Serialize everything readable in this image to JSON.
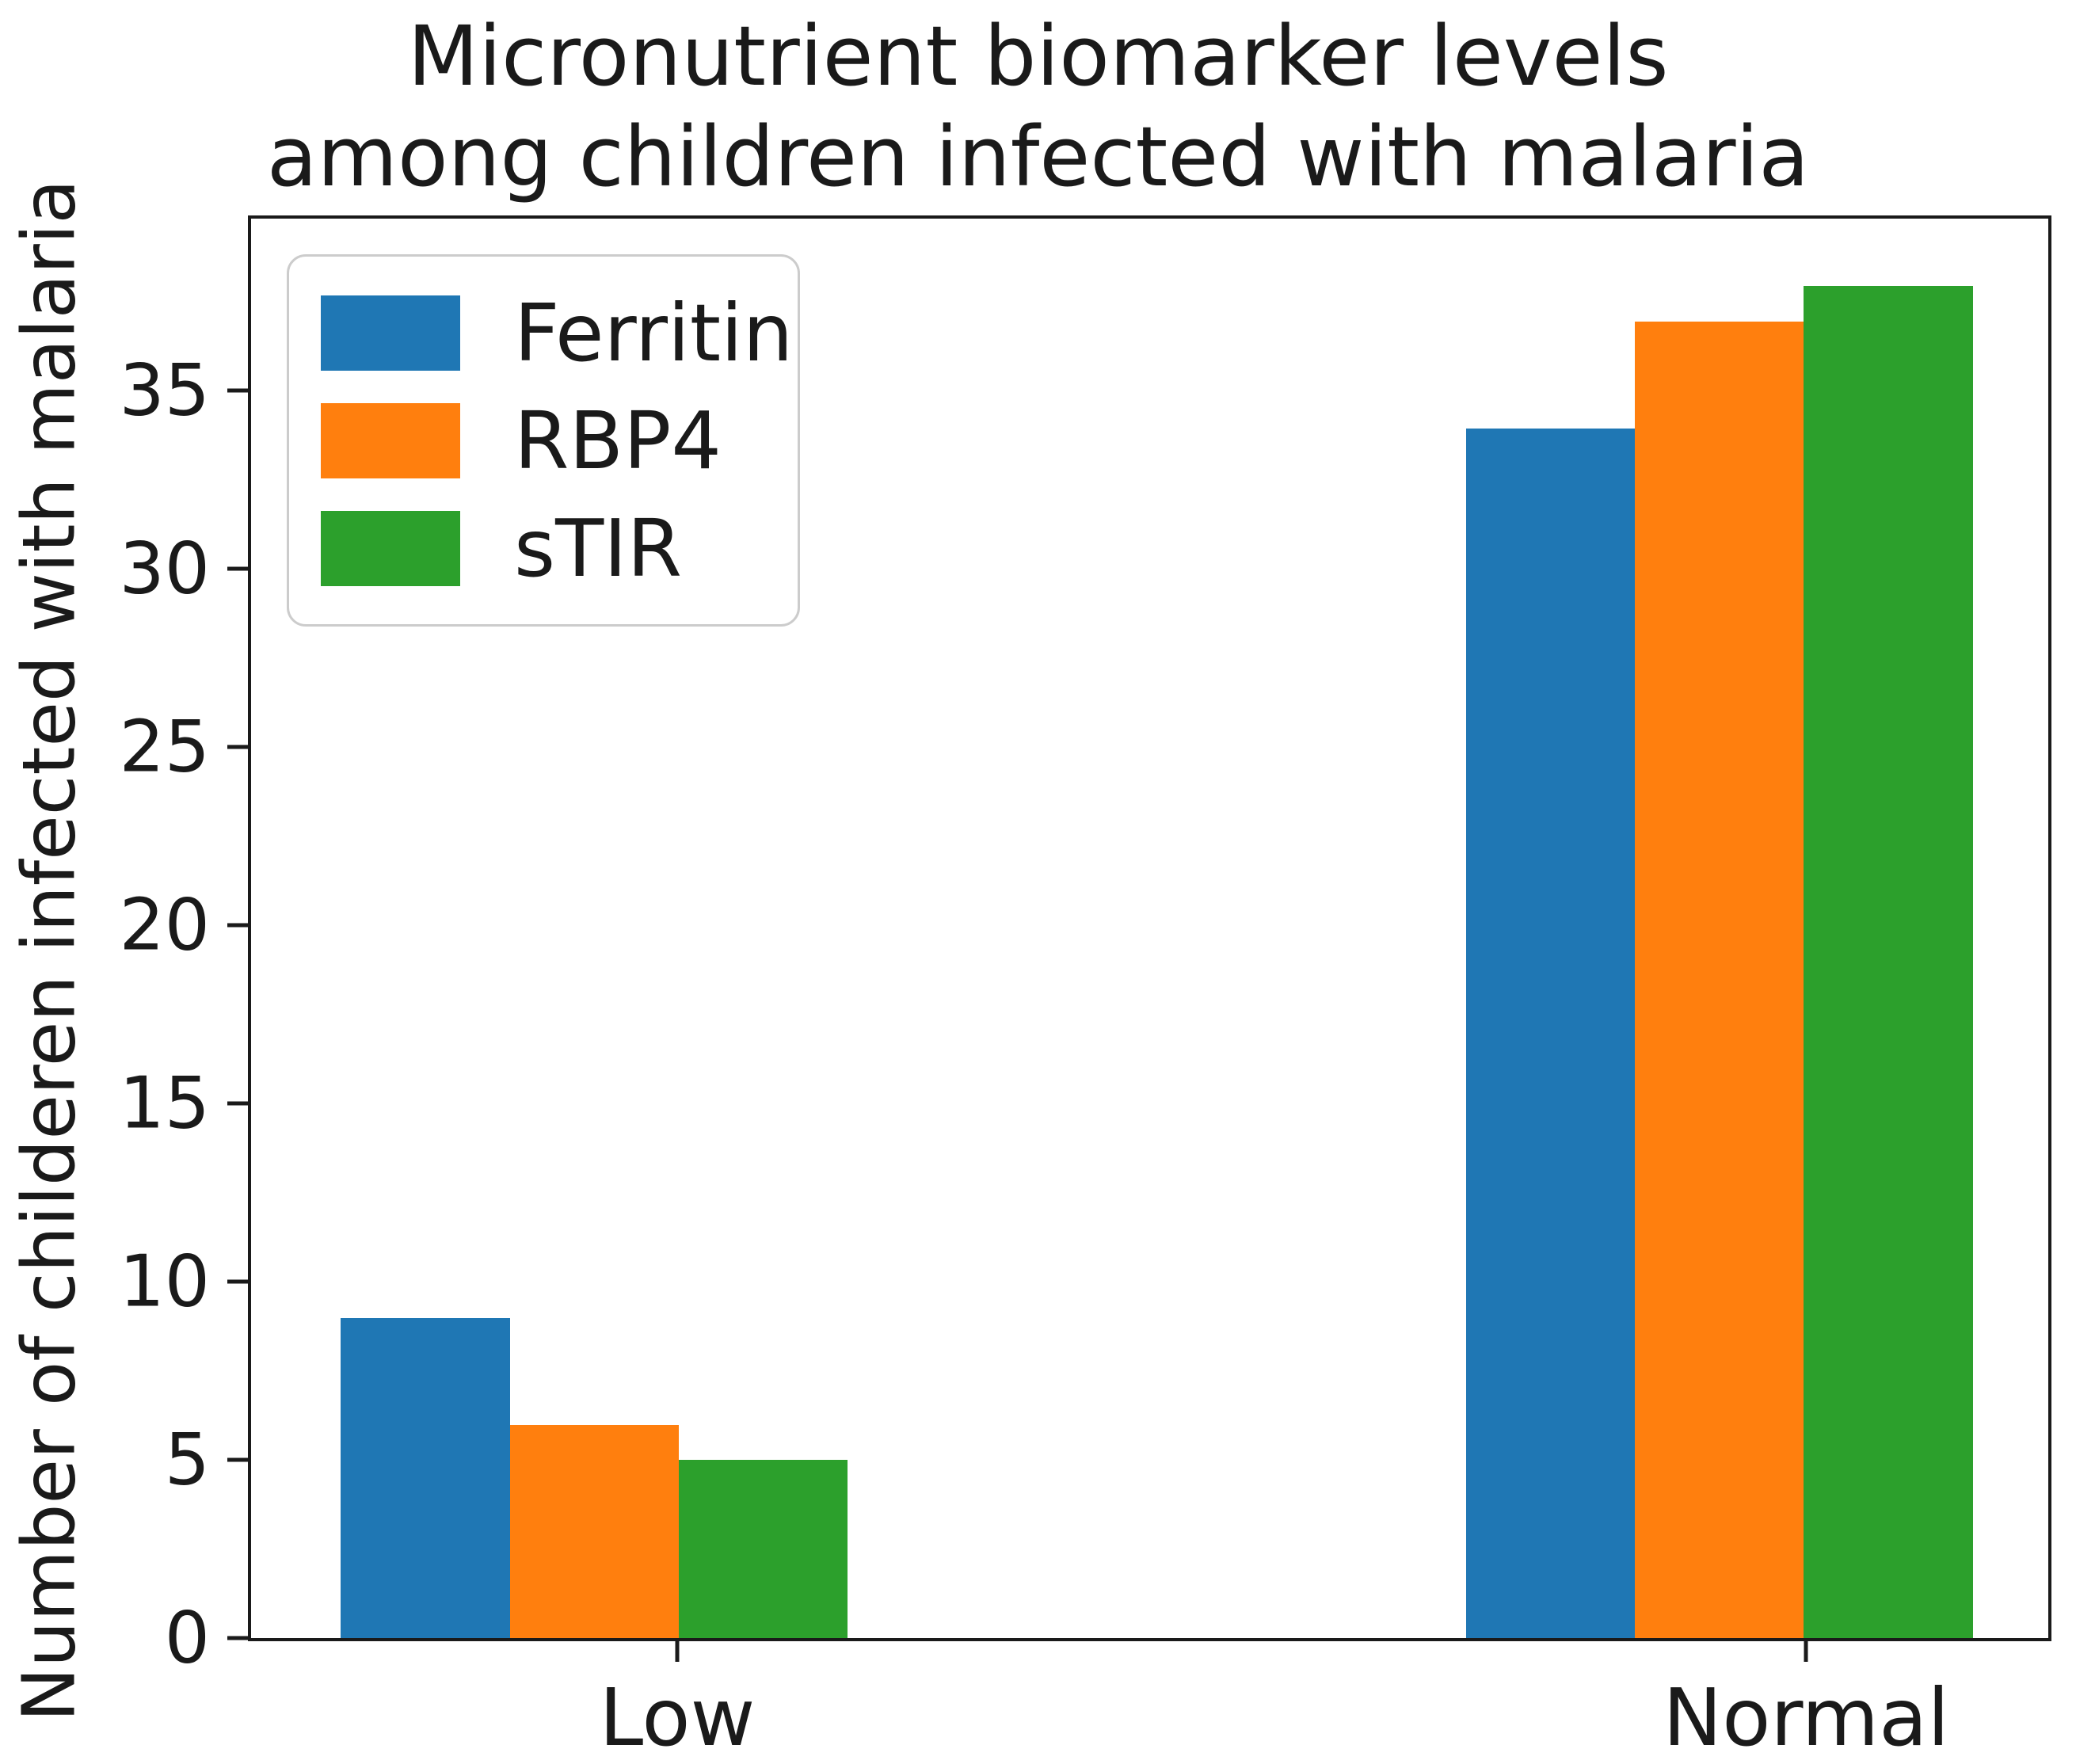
{
  "title_line1": "Micronutrient biomarker levels",
  "title_line2": "among children infected with malaria",
  "chart_data": {
    "type": "bar",
    "title": "Micronutrient biomarker levels\namong children infected with malaria",
    "categories": [
      "Low",
      "Normal"
    ],
    "series": [
      {
        "name": "Ferritin",
        "color": "#1f77b4",
        "values": [
          9,
          34
        ]
      },
      {
        "name": "RBP4",
        "color": "#ff7f0e",
        "values": [
          6,
          37
        ]
      },
      {
        "name": "sTIR",
        "color": "#2ca02c",
        "values": [
          5,
          38
        ]
      }
    ],
    "xlabel": "",
    "ylabel": "Number of childeren infected with malaria",
    "ylim": [
      0,
      39.9
    ],
    "yticks": [
      0,
      5,
      10,
      15,
      20,
      25,
      30,
      35
    ],
    "legend_position": "upper left",
    "grid": false,
    "axis_color": "#1a1a1a",
    "background_color": "#ffffff"
  }
}
